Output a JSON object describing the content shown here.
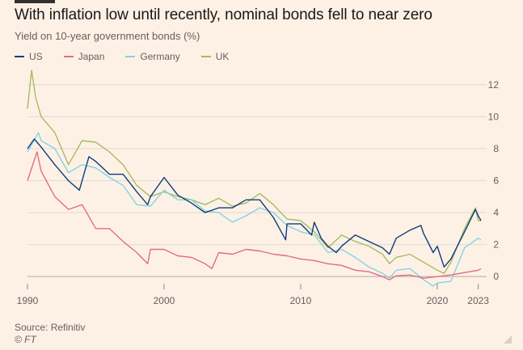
{
  "header": {
    "title": "With inflation low until recently, nominal bonds fell to near zero",
    "subtitle": "Yield on 10-year government bonds (%)"
  },
  "footer": {
    "source": "Source: Refinitiv",
    "credit": "© FT"
  },
  "colors": {
    "background": "#fdf1e6",
    "US": "#0f3d7a",
    "Japan": "#e26b83",
    "Germany": "#86d3e3",
    "UK": "#a7bb63",
    "grid": "#e3d9cf"
  },
  "chart_data": {
    "type": "line",
    "title": "With inflation low until recently, nominal bonds fell to near zero",
    "ylabel": "Yield on 10-year government bonds (%)",
    "xlabel": "",
    "xlim": [
      1990,
      2023.2
    ],
    "ylim": [
      -0.8,
      13
    ],
    "x_ticks": [
      1990,
      2000,
      2010,
      2020,
      2023
    ],
    "y_ticks": [
      0,
      2,
      4,
      6,
      8,
      10,
      12
    ],
    "grid": true,
    "y_axis_side": "right",
    "legend_position": "top-left",
    "series": [
      {
        "name": "US",
        "color": "#0f3d7a",
        "x": [
          1990,
          1990.5,
          1991,
          1992,
          1993,
          1993.8,
          1994.5,
          1995,
          1996,
          1997,
          1998,
          1998.8,
          1999,
          2000,
          2001,
          2002,
          2003,
          2004,
          2005,
          2006,
          2007,
          2008,
          2008.9,
          2009,
          2010,
          2010.8,
          2011,
          2011.5,
          2012,
          2012.6,
          2013,
          2014,
          2015,
          2016,
          2016.5,
          2017,
          2018,
          2018.8,
          2019,
          2019.7,
          2020,
          2020.5,
          2021,
          2022,
          2022.8,
          2023,
          2023.2
        ],
        "y": [
          8.0,
          8.6,
          8.1,
          7.0,
          6.0,
          5.4,
          7.5,
          7.2,
          6.4,
          6.4,
          5.3,
          4.5,
          5.0,
          6.2,
          5.1,
          4.6,
          4.0,
          4.3,
          4.3,
          4.8,
          4.8,
          3.7,
          2.3,
          3.3,
          3.3,
          2.6,
          3.4,
          2.4,
          1.9,
          1.5,
          1.9,
          2.6,
          2.2,
          1.8,
          1.4,
          2.4,
          2.9,
          3.2,
          2.7,
          1.5,
          1.9,
          0.6,
          1.1,
          2.8,
          4.2,
          3.8,
          3.5
        ]
      },
      {
        "name": "Japan",
        "color": "#e26b83",
        "x": [
          1990,
          1990.7,
          1991,
          1992,
          1993,
          1994,
          1995,
          1996,
          1997,
          1998,
          1998.8,
          1999,
          2000,
          2001,
          2002,
          2003,
          2003.5,
          2004,
          2005,
          2006,
          2007,
          2008,
          2009,
          2010,
          2011,
          2012,
          2013,
          2014,
          2015,
          2016,
          2016.5,
          2017,
          2018,
          2019,
          2020,
          2021,
          2022,
          2023,
          2023.2
        ],
        "y": [
          6.0,
          7.8,
          6.6,
          5.0,
          4.2,
          4.5,
          3.0,
          3.0,
          2.2,
          1.5,
          0.8,
          1.7,
          1.7,
          1.3,
          1.2,
          0.8,
          0.5,
          1.5,
          1.4,
          1.7,
          1.6,
          1.4,
          1.3,
          1.1,
          1.0,
          0.8,
          0.7,
          0.4,
          0.3,
          0.0,
          -0.2,
          0.05,
          0.1,
          -0.1,
          0.0,
          0.1,
          0.25,
          0.4,
          0.5
        ]
      },
      {
        "name": "Germany",
        "color": "#86d3e3",
        "x": [
          1990,
          1990.8,
          1991,
          1992,
          1993,
          1994,
          1995,
          1996,
          1997,
          1998,
          1999,
          2000,
          2001,
          2002,
          2003,
          2004,
          2005,
          2006,
          2007,
          2008,
          2009,
          2010,
          2011,
          2012,
          2013,
          2014,
          2015,
          2016,
          2016.5,
          2017,
          2018,
          2019,
          2019.7,
          2020,
          2021,
          2022,
          2023,
          2023.2
        ],
        "y": [
          7.8,
          9.0,
          8.5,
          8.0,
          6.5,
          7.0,
          6.8,
          6.2,
          5.7,
          4.5,
          4.4,
          5.4,
          4.8,
          4.8,
          4.1,
          4.0,
          3.4,
          3.8,
          4.3,
          4.0,
          3.2,
          2.8,
          2.6,
          1.5,
          1.7,
          1.2,
          0.6,
          0.2,
          -0.1,
          0.4,
          0.5,
          -0.2,
          -0.6,
          -0.4,
          -0.3,
          1.8,
          2.4,
          2.3
        ]
      },
      {
        "name": "UK",
        "color": "#a7bb63",
        "x": [
          1990,
          1990.3,
          1990.6,
          1991,
          1992,
          1993,
          1994,
          1995,
          1996,
          1997,
          1998,
          1999,
          2000,
          2001,
          2002,
          2003,
          2004,
          2005,
          2006,
          2007,
          2008,
          2009,
          2010,
          2011,
          2012,
          2013,
          2014,
          2015,
          2016,
          2016.5,
          2017,
          2018,
          2019,
          2020,
          2020.5,
          2021,
          2022,
          2022.8,
          2023,
          2023.2
        ],
        "y": [
          10.5,
          12.9,
          11.2,
          10.0,
          9.0,
          7.0,
          8.5,
          8.4,
          7.8,
          7.0,
          5.7,
          5.0,
          5.3,
          5.0,
          4.8,
          4.5,
          4.9,
          4.4,
          4.6,
          5.2,
          4.5,
          3.6,
          3.5,
          2.8,
          1.8,
          2.6,
          2.2,
          1.9,
          1.4,
          0.8,
          1.2,
          1.4,
          0.9,
          0.4,
          0.2,
          0.9,
          3.0,
          4.3,
          3.5,
          3.5
        ]
      }
    ]
  }
}
